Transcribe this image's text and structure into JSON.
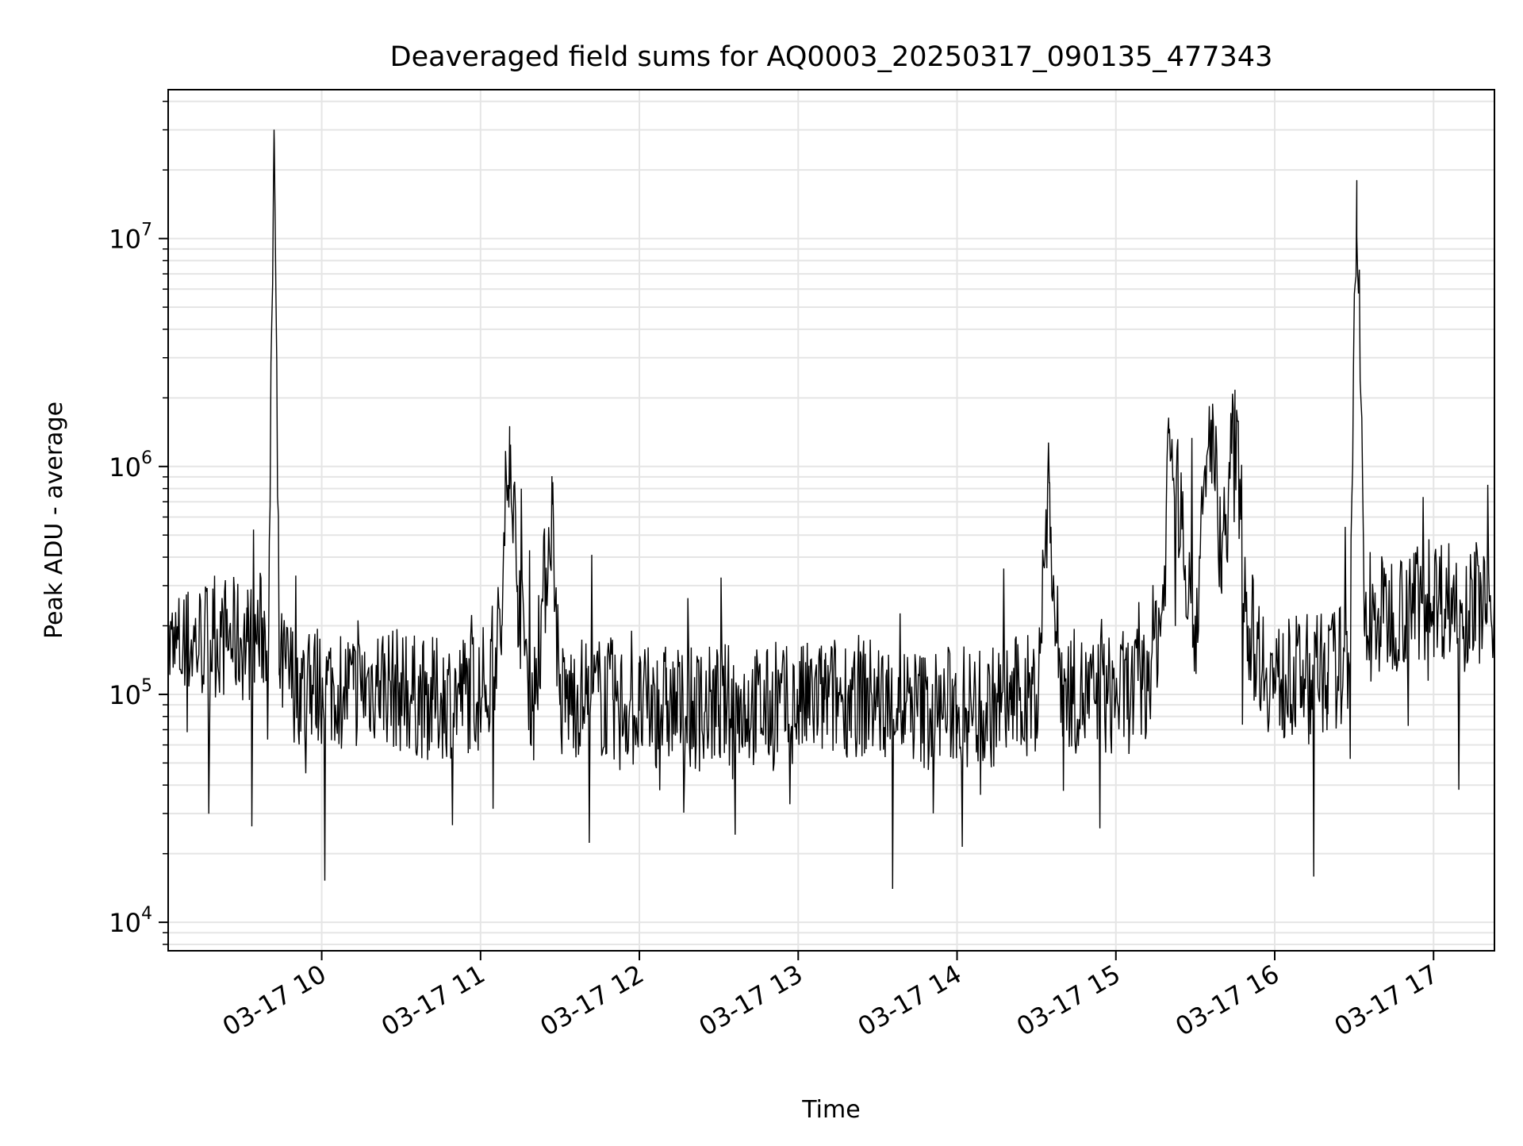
{
  "chart_data": {
    "type": "line",
    "title": "Deaveraged field sums for AQ0003_20250317_090135_477343",
    "xlabel": "Time",
    "ylabel": "Peak ADU - average",
    "yscale": "log",
    "ylim": [
      7500,
      45000000
    ],
    "xlim": [
      "2025-03-17 09:02",
      "2025-03-17 17:23"
    ],
    "grid": true,
    "line_color": "#000000",
    "grid_color": "#e5e5e5",
    "x_ticks": [
      {
        "t": "2025-03-17 10:00",
        "label": "03-17 10"
      },
      {
        "t": "2025-03-17 11:00",
        "label": "03-17 11"
      },
      {
        "t": "2025-03-17 12:00",
        "label": "03-17 12"
      },
      {
        "t": "2025-03-17 13:00",
        "label": "03-17 13"
      },
      {
        "t": "2025-03-17 14:00",
        "label": "03-17 14"
      },
      {
        "t": "2025-03-17 15:00",
        "label": "03-17 15"
      },
      {
        "t": "2025-03-17 16:00",
        "label": "03-17 16"
      },
      {
        "t": "2025-03-17 17:00",
        "label": "03-17 17"
      }
    ],
    "y_ticks": [
      {
        "value": 10000,
        "base": "10",
        "exp": "4"
      },
      {
        "value": 100000,
        "base": "10",
        "exp": "5"
      },
      {
        "value": 1000000,
        "base": "10",
        "exp": "6"
      },
      {
        "value": 10000000,
        "base": "10",
        "exp": "7"
      }
    ],
    "series": [
      {
        "x": [
          "2025-03-17 09:02",
          "2025-03-17 09:12",
          "2025-03-17 09:22",
          "2025-03-17 09:32",
          "2025-03-17 09:40",
          "2025-03-17 09:42",
          "2025-03-17 09:44",
          "2025-03-17 09:52",
          "2025-03-17 10:02",
          "2025-03-17 10:12",
          "2025-03-17 10:22",
          "2025-03-17 10:32",
          "2025-03-17 10:42",
          "2025-03-17 10:52",
          "2025-03-17 11:02",
          "2025-03-17 11:08",
          "2025-03-17 11:11",
          "2025-03-17 11:14",
          "2025-03-17 11:20",
          "2025-03-17 11:27",
          "2025-03-17 11:30",
          "2025-03-17 11:33",
          "2025-03-17 11:40",
          "2025-03-17 11:50",
          "2025-03-17 12:00",
          "2025-03-17 12:10",
          "2025-03-17 12:20",
          "2025-03-17 12:30",
          "2025-03-17 12:40",
          "2025-03-17 12:50",
          "2025-03-17 13:00",
          "2025-03-17 13:10",
          "2025-03-17 13:20",
          "2025-03-17 13:30",
          "2025-03-17 13:40",
          "2025-03-17 13:50",
          "2025-03-17 14:00",
          "2025-03-17 14:10",
          "2025-03-17 14:20",
          "2025-03-17 14:30",
          "2025-03-17 14:35",
          "2025-03-17 14:37",
          "2025-03-17 14:40",
          "2025-03-17 14:50",
          "2025-03-17 15:00",
          "2025-03-17 15:10",
          "2025-03-17 15:18",
          "2025-03-17 15:20",
          "2025-03-17 15:30",
          "2025-03-17 15:36",
          "2025-03-17 15:40",
          "2025-03-17 15:45",
          "2025-03-17 15:50",
          "2025-03-17 16:00",
          "2025-03-17 16:10",
          "2025-03-17 16:20",
          "2025-03-17 16:28",
          "2025-03-17 16:31",
          "2025-03-17 16:34",
          "2025-03-17 16:40",
          "2025-03-17 16:50",
          "2025-03-17 17:00",
          "2025-03-17 17:10",
          "2025-03-17 17:20",
          "2025-03-17 17:23"
        ],
        "y": [
          150000,
          170000,
          180000,
          170000,
          200000,
          30000000,
          130000,
          110000,
          110000,
          105000,
          115000,
          100000,
          95000,
          100000,
          110000,
          200000,
          1500000,
          300000,
          90000,
          680000,
          90000,
          95000,
          100000,
          95000,
          85000,
          90000,
          85000,
          90000,
          90000,
          85000,
          90000,
          95000,
          100000,
          95000,
          90000,
          85000,
          90000,
          85000,
          95000,
          100000,
          850000,
          200000,
          110000,
          95000,
          100000,
          105000,
          250000,
          1400000,
          200000,
          1600000,
          400000,
          1500000,
          200000,
          110000,
          120000,
          125000,
          140000,
          18000000,
          180000,
          220000,
          250000,
          270000,
          260000,
          250000,
          240000
        ]
      }
    ]
  }
}
